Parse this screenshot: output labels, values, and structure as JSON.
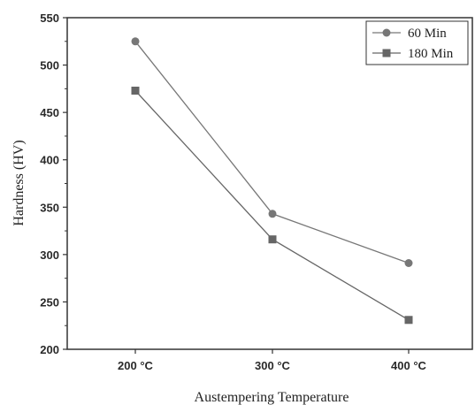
{
  "chart_data": {
    "type": "line",
    "title": "",
    "xlabel": "Austempering Temperature",
    "ylabel": "Hardness (HV)",
    "categories": [
      "200 °C",
      "300 °C",
      "400 °C"
    ],
    "ylim": [
      200,
      550
    ],
    "yticks": [
      200,
      250,
      300,
      350,
      400,
      450,
      500,
      550
    ],
    "grid": false,
    "legend_position": "top-right",
    "series": [
      {
        "name": "60 Min",
        "marker": "circle",
        "color": "#777777",
        "values": [
          525,
          343,
          291
        ]
      },
      {
        "name": "180 Min",
        "marker": "square",
        "color": "#666666",
        "values": [
          473,
          316,
          231
        ]
      }
    ]
  }
}
